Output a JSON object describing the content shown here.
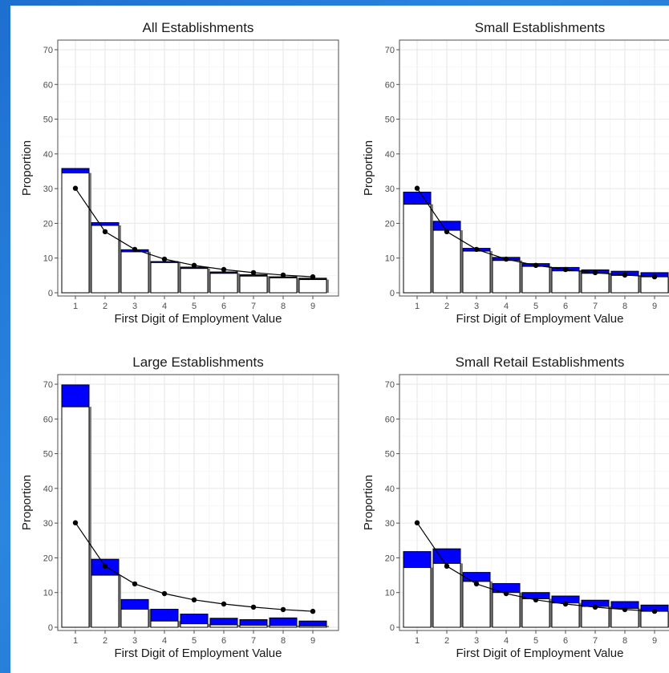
{
  "chart_data": [
    {
      "type": "bar",
      "title": "All Establishments",
      "xlabel": "First Digit of Employment Value",
      "ylabel": "Proportion",
      "categories": [
        "1",
        "2",
        "3",
        "4",
        "5",
        "6",
        "7",
        "8",
        "9"
      ],
      "ylim": [
        0,
        70
      ],
      "yticks": [
        "0",
        "10",
        "20",
        "30",
        "40",
        "50",
        "60",
        "70"
      ],
      "series": [
        {
          "values": [
            35.8,
            20.2,
            12.4,
            9.0,
            7.4,
            6.0,
            5.2,
            4.6,
            4.2
          ]
        },
        {
          "values": [
            34.5,
            19.4,
            11.8,
            8.7,
            7.0,
            5.6,
            4.8,
            4.3,
            3.8
          ]
        },
        {
          "values": [
            30.1,
            17.6,
            12.5,
            9.7,
            7.9,
            6.7,
            5.8,
            5.1,
            4.6
          ]
        }
      ]
    },
    {
      "type": "bar",
      "title": "Small Establishments",
      "xlabel": "First Digit of Employment Value",
      "ylabel": "Proportion",
      "categories": [
        "1",
        "2",
        "3",
        "4",
        "5",
        "6",
        "7",
        "8",
        "9"
      ],
      "ylim": [
        0,
        70
      ],
      "yticks": [
        "0",
        "10",
        "20",
        "30",
        "40",
        "50",
        "60",
        "70"
      ],
      "series": [
        {
          "values": [
            29.0,
            20.6,
            12.8,
            10.2,
            8.4,
            7.3,
            6.6,
            6.2,
            5.8
          ]
        },
        {
          "values": [
            25.5,
            18.0,
            12.0,
            9.3,
            7.6,
            6.3,
            5.6,
            5.0,
            4.6
          ]
        },
        {
          "values": [
            30.1,
            17.6,
            12.5,
            9.7,
            7.9,
            6.7,
            5.8,
            5.1,
            4.6
          ]
        }
      ]
    },
    {
      "type": "bar",
      "title": "Large Establishments",
      "xlabel": "First Digit of Employment Value",
      "ylabel": "Proportion",
      "categories": [
        "1",
        "2",
        "3",
        "4",
        "5",
        "6",
        "7",
        "8",
        "9"
      ],
      "ylim": [
        0,
        70
      ],
      "yticks": [
        "0",
        "10",
        "20",
        "30",
        "40",
        "50",
        "60",
        "70"
      ],
      "series": [
        {
          "values": [
            69.8,
            19.6,
            8.0,
            5.2,
            3.8,
            2.6,
            2.2,
            2.7,
            1.8
          ]
        },
        {
          "values": [
            63.5,
            15.0,
            5.2,
            1.8,
            1.0,
            0.7,
            0.6,
            0.5,
            0.4
          ]
        },
        {
          "values": [
            30.1,
            17.6,
            12.5,
            9.7,
            7.9,
            6.7,
            5.8,
            5.1,
            4.6
          ]
        }
      ]
    },
    {
      "type": "bar",
      "title": "Small Retail Establishments",
      "xlabel": "First Digit of Employment Value",
      "ylabel": "Proportion",
      "categories": [
        "1",
        "2",
        "3",
        "4",
        "5",
        "6",
        "7",
        "8",
        "9"
      ],
      "ylim": [
        0,
        70
      ],
      "yticks": [
        "0",
        "10",
        "20",
        "30",
        "40",
        "50",
        "60",
        "70"
      ],
      "series": [
        {
          "values": [
            21.8,
            22.6,
            15.8,
            12.6,
            10.0,
            9.0,
            7.8,
            7.4,
            6.4
          ]
        },
        {
          "values": [
            17.2,
            18.4,
            13.2,
            10.0,
            8.2,
            7.0,
            6.0,
            5.4,
            4.6
          ]
        },
        {
          "values": [
            30.1,
            17.6,
            12.5,
            9.7,
            7.9,
            6.7,
            5.8,
            5.1,
            4.6
          ]
        }
      ]
    }
  ]
}
